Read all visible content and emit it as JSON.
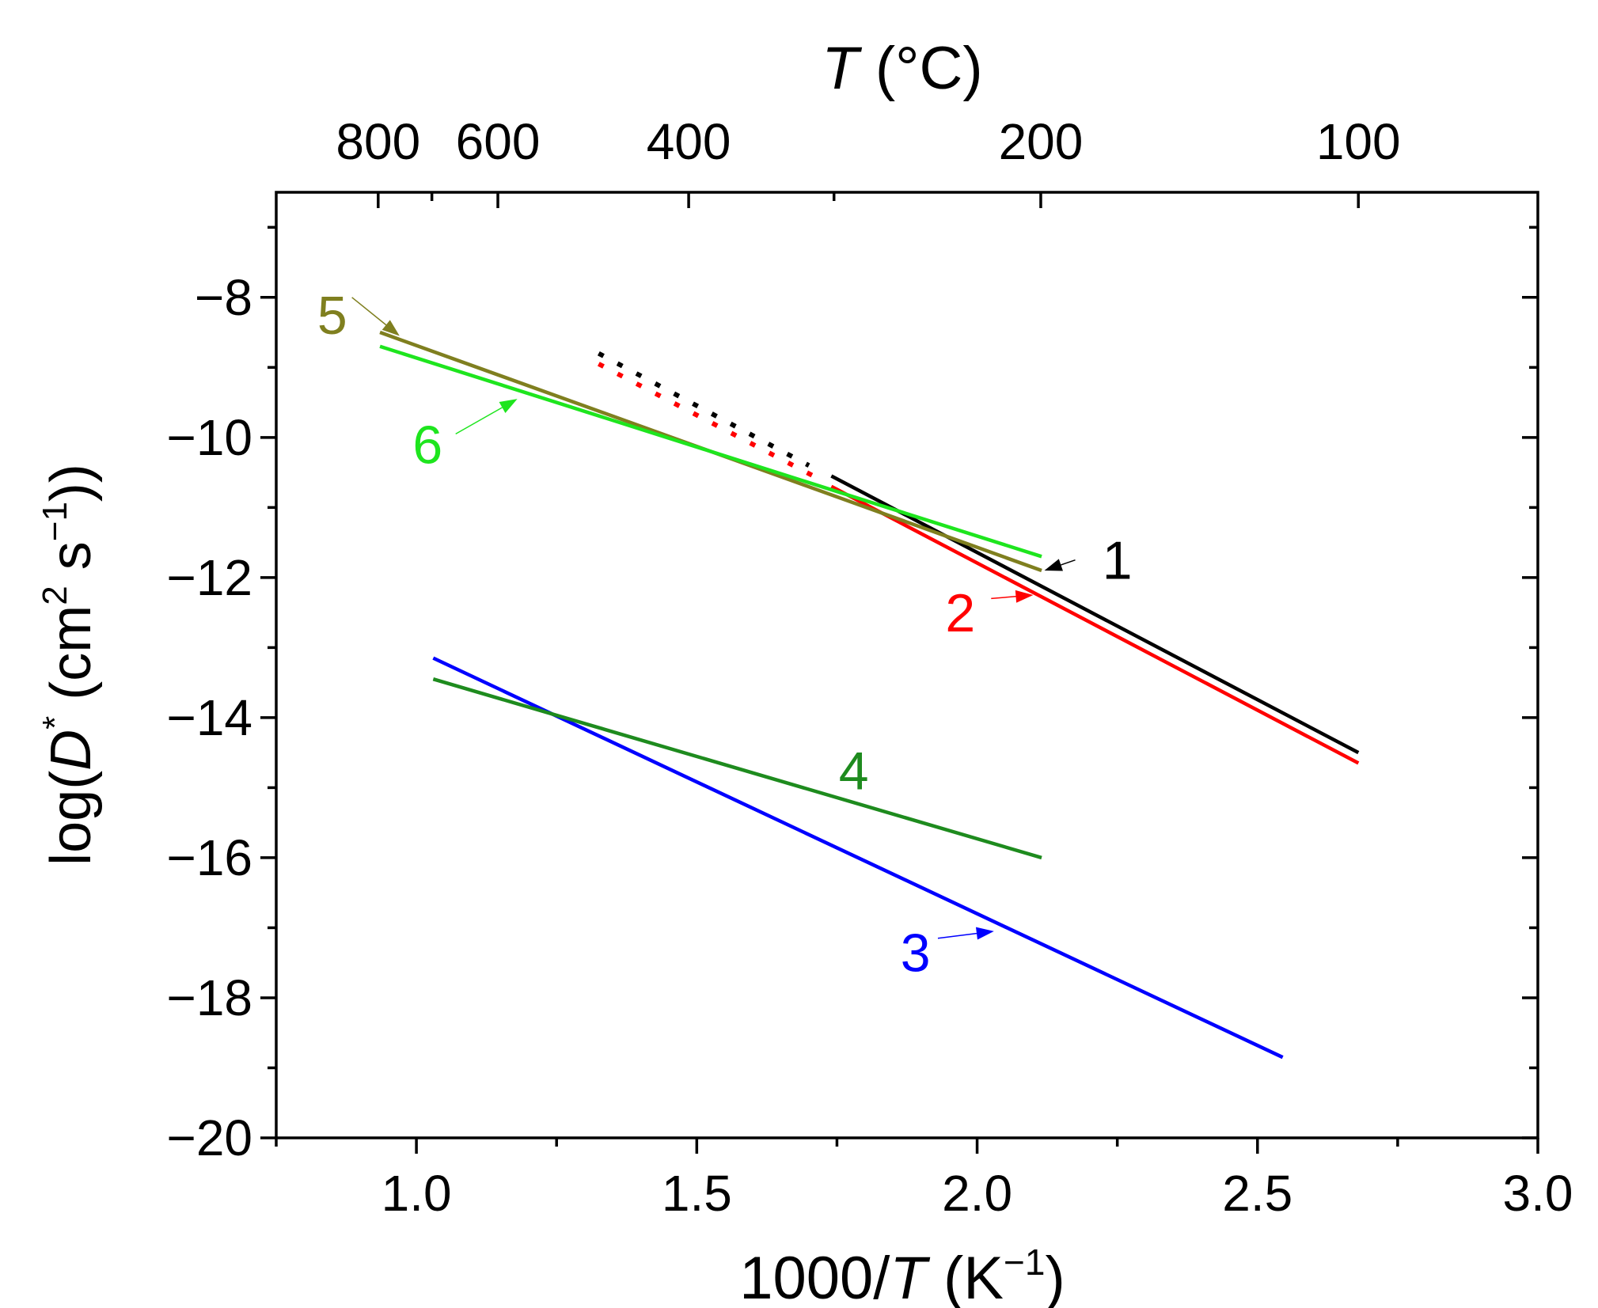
{
  "chart_data": {
    "type": "line",
    "xlabel": {
      "text": "1000/",
      "italic": "T",
      "unit": " (K",
      "sup": "−1",
      "close": ")"
    },
    "ylabel": {
      "text": "log(",
      "italic": "D",
      "sup1": "*",
      "unit": " (cm",
      "sup2": "2",
      "mid": " s",
      "sup3": "−1",
      "close": "))"
    },
    "top_axis_label": {
      "italic": "T",
      "text": " (°C)"
    },
    "xlim": [
      0.75,
      3.0
    ],
    "ylim": [
      -20,
      -6.5
    ],
    "x_ticks": [
      1.0,
      1.5,
      2.0,
      2.5,
      3.0
    ],
    "x_tick_labels": [
      "1.0",
      "1.5",
      "2.0",
      "2.5",
      "3.0"
    ],
    "x_minor_ticks": [
      0.75,
      1.25,
      1.75,
      2.25,
      2.75
    ],
    "y_ticks": [
      -8,
      -10,
      -12,
      -14,
      -16,
      -18,
      -20
    ],
    "y_tick_labels": [
      "−8",
      "−10",
      "−12",
      "−14",
      "−16",
      "−18",
      "−20"
    ],
    "y_minor_ticks": [
      -7,
      -9,
      -11,
      -13,
      -15,
      -17,
      -19
    ],
    "top_ticks_celsius": [
      800,
      600,
      400,
      200,
      100
    ],
    "top_tick_labels": [
      "800",
      "600",
      "400",
      "200",
      "100"
    ],
    "top_minor_ticks_celsius": [
      700,
      300
    ],
    "series": [
      {
        "name": "1",
        "color": "#000000",
        "x": [
          1.74,
          2.68
        ],
        "y": [
          -10.55,
          -14.5
        ],
        "extrapolated": {
          "x": [
            1.325,
            1.7
          ],
          "y": [
            -8.8,
            -10.4
          ]
        }
      },
      {
        "name": "2",
        "color": "#ff0000",
        "x": [
          1.74,
          2.68
        ],
        "y": [
          -10.7,
          -14.65
        ],
        "extrapolated": {
          "x": [
            1.325,
            1.72
          ],
          "y": [
            -8.95,
            -10.6
          ]
        }
      },
      {
        "name": "3",
        "color": "#0000ff",
        "x": [
          1.03,
          2.545
        ],
        "y": [
          -13.15,
          -18.85
        ]
      },
      {
        "name": "4",
        "color": "#1e8b1e",
        "x": [
          1.03,
          2.115
        ],
        "y": [
          -13.45,
          -16.0
        ]
      },
      {
        "name": "5",
        "color": "#7f7f1f",
        "x": [
          0.935,
          2.115
        ],
        "y": [
          -8.5,
          -11.9
        ]
      },
      {
        "name": "6",
        "color": "#1ee51e",
        "x": [
          0.935,
          2.115
        ],
        "y": [
          -8.7,
          -11.7
        ]
      }
    ],
    "annotations": [
      {
        "label": "1",
        "color": "#000000",
        "text_at": [
          2.25,
          -11.75
        ],
        "arrow_from": [
          2.175,
          -11.75
        ],
        "arrow_to": [
          2.12,
          -11.9
        ]
      },
      {
        "label": "2",
        "color": "#ff0000",
        "text_at": [
          1.97,
          -12.5
        ],
        "arrow_from": [
          2.025,
          -12.3
        ],
        "arrow_to": [
          2.1,
          -12.25
        ]
      },
      {
        "label": "3",
        "color": "#0000ff",
        "text_at": [
          1.89,
          -17.35
        ],
        "arrow_from": [
          1.93,
          -17.15
        ],
        "arrow_to": [
          2.03,
          -17.05
        ]
      },
      {
        "label": "4",
        "color": "#1e8b1e",
        "text_at": [
          1.78,
          -14.75
        ],
        "arrow_from": null,
        "arrow_to": null
      },
      {
        "label": "5",
        "color": "#7f7f1f",
        "text_at": [
          0.85,
          -8.25
        ],
        "arrow_from": [
          0.885,
          -8.0
        ],
        "arrow_to": [
          0.97,
          -8.55
        ]
      },
      {
        "label": "6",
        "color": "#1ee51e",
        "text_at": [
          1.02,
          -10.1
        ],
        "arrow_from": [
          1.07,
          -9.95
        ],
        "arrow_to": [
          1.18,
          -9.45
        ]
      }
    ]
  }
}
